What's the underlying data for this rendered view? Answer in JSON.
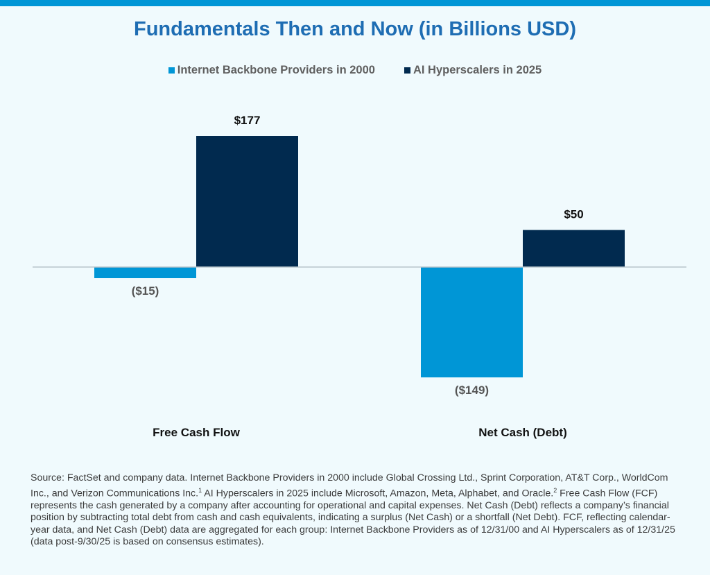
{
  "chart_data": {
    "type": "bar",
    "title": "Fundamentals Then and Now (in Billions USD)",
    "categories": [
      "Free Cash Flow",
      "Net Cash (Debt)"
    ],
    "series": [
      {
        "name": "Internet Backbone Providers in 2000",
        "color": "#0096d6",
        "values": [
          -15,
          -149
        ],
        "labels": [
          "($15)",
          "($149)"
        ]
      },
      {
        "name": "AI Hyperscalers in 2025",
        "color": "#012a4f",
        "values": [
          177,
          50
        ],
        "labels": [
          "$177",
          "$50"
        ]
      }
    ],
    "legend": "top-center",
    "grid": false,
    "xlabel": "",
    "ylabel": ""
  },
  "footnote": {
    "part1": "Source: FactSet and company data. Internet Backbone Providers in 2000 include Global Crossing Ltd., Sprint Corporation, AT&T Corp., WorldCom Inc., and Verizon Communications Inc.",
    "sup1": "1",
    "part2": " AI Hyperscalers in 2025 include Microsoft, Amazon, Meta, Alphabet, and Oracle.",
    "sup2": "2",
    "part3": " Free Cash Flow (FCF) represents the cash generated by a company after accounting for operational and capital expenses. Net Cash (Debt) reflects a company’s financial position by subtracting total debt from cash and cash equivalents, indicating a surplus (Net Cash) or a shortfall (Net Debt). FCF, reflecting calendar-year data, and Net Cash (Debt) data are aggregated for each group: Internet Backbone Providers as of 12/31/00 and AI Hyperscalers as of 12/31/25 (data post-9/30/25 is based on consensus estimates)."
  }
}
